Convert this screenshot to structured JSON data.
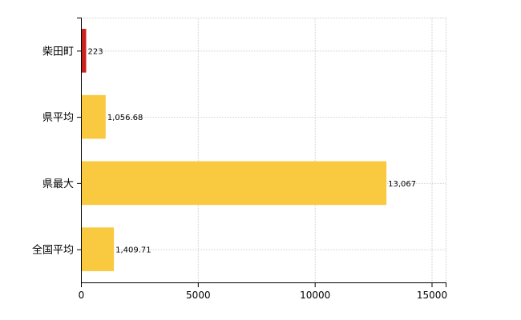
{
  "chart_data": {
    "type": "bar",
    "orientation": "horizontal",
    "categories": [
      "柴田町",
      "県平均",
      "県最大",
      "全国平均"
    ],
    "values": [
      223,
      1056.68,
      13067,
      1409.71
    ],
    "value_labels": [
      "223",
      "1,056.68",
      "13,067",
      "1,409.71"
    ],
    "bar_colors": [
      "#c8231e",
      "#f9c940",
      "#f9c940",
      "#f9c940"
    ],
    "xlim": [
      0,
      15600
    ],
    "xticks": [
      0,
      5000,
      10000,
      15000
    ],
    "xtick_labels": [
      "0",
      "5000",
      "10000",
      "15000"
    ],
    "grid": "vertical-dotted",
    "title": "",
    "xlabel": "",
    "ylabel": ""
  }
}
